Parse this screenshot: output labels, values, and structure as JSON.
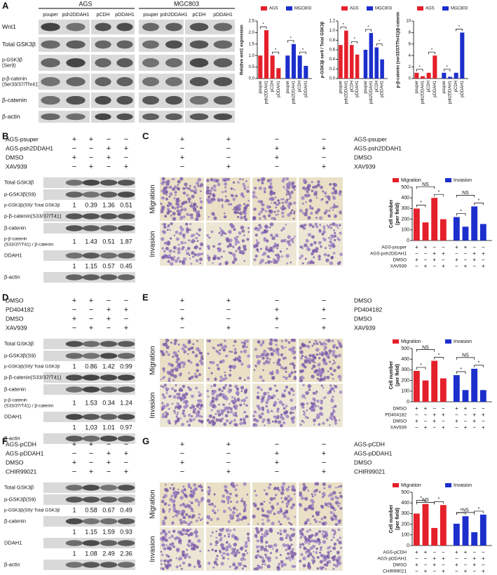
{
  "sig_mark": "*",
  "ns_mark": "NS",
  "panel_a": {
    "label": "A",
    "groups": [
      "AGS",
      "MGC803"
    ],
    "lanes": [
      "psuper",
      "psh2DDAH1",
      "pCDH",
      "pDDAH1"
    ],
    "blot_rows": [
      [
        "Wnt1"
      ],
      [
        "Total GSK3β"
      ],
      [
        "p-GSK3β",
        "(Ser9)"
      ],
      [
        "p-β-catenin",
        "(Ser33/37/Thr41)"
      ],
      [
        "β-catenin"
      ],
      [
        "β-actin"
      ]
    ],
    "charts": [
      {
        "type": "bar",
        "y_label": "Relative wnt1 expression",
        "categories": [
          "psuper",
          "psh2DDAH1",
          "pCDH",
          "pDDAH1"
        ],
        "series": [
          {
            "name": "AGS",
            "color": "#e4202a",
            "values": [
              1,
              2.1,
              1,
              0.45
            ]
          },
          {
            "name": "MGC803",
            "color": "#1c2fcc",
            "values": [
              1,
              1.5,
              1,
              0.55
            ]
          }
        ],
        "ylim": [
          0,
          2.5
        ],
        "yticks": [
          {
            "value": 0,
            "label": "0.0"
          },
          {
            "value": 0.5,
            "label": "0.5"
          },
          {
            "value": 1,
            "label": "1.0"
          },
          {
            "value": 1.5,
            "label": "1.5"
          },
          {
            "value": 2,
            "label": "2.0"
          },
          {
            "value": 2.5,
            "label": "2.5"
          }
        ]
      },
      {
        "type": "bar",
        "y_label": "p-GSK3β ser9 / Total GSK3β",
        "categories": [
          "psuper",
          "psh2DDAH1",
          "pCDH",
          "pDDAH1"
        ],
        "series": [
          {
            "name": "AGS",
            "color": "#e4202a",
            "values": [
              0.7,
              1.0,
              0.7,
              0.5
            ]
          },
          {
            "name": "MGC803",
            "color": "#1c2fcc",
            "values": [
              0.6,
              0.95,
              0.65,
              0.4
            ]
          }
        ],
        "ylim": [
          0,
          1.2
        ],
        "yticks": [
          {
            "value": 0,
            "label": "0.0"
          },
          {
            "value": 0.2,
            "label": "0.2"
          },
          {
            "value": 0.4,
            "label": "0.4"
          },
          {
            "value": 0.6,
            "label": "0.6"
          },
          {
            "value": 0.8,
            "label": "0.8"
          },
          {
            "value": 1,
            "label": "1.0"
          },
          {
            "value": 1.2,
            "label": "1.2"
          }
        ]
      },
      {
        "type": "bar",
        "y_label": "p-β-catenin (ser33/37/Thr41)/β-catenin",
        "categories": [
          "psuper",
          "psh2DDAH1",
          "pCDH",
          "pDDAH1"
        ],
        "series": [
          {
            "name": "AGS",
            "color": "#e4202a",
            "values": [
              1,
              0.4,
              1,
              4
            ]
          },
          {
            "name": "MGC803",
            "color": "#1c2fcc",
            "values": [
              1,
              0.3,
              1,
              8
            ]
          }
        ],
        "ylim": [
          0,
          10
        ],
        "yticks": [
          0,
          2,
          4,
          6,
          8,
          10
        ]
      }
    ]
  },
  "panel_b": {
    "label": "B",
    "conditions": [
      {
        "label": "AGS-psuper",
        "signs": [
          "+",
          "+",
          "−",
          "−"
        ]
      },
      {
        "label": "AGS-psh2DDAH1",
        "signs": [
          "−",
          "−",
          "+",
          "+"
        ]
      },
      {
        "label": "DMSO",
        "signs": [
          "+",
          "−",
          "+",
          "−"
        ]
      },
      {
        "label": "XAV939",
        "signs": [
          "−",
          "+",
          "−",
          "+"
        ]
      }
    ],
    "blots": [
      {
        "label": [
          "Total GSK3β"
        ]
      },
      {
        "label": [
          "p-GSK3β(S9)"
        ]
      },
      {
        "label": [
          "p-GSK3β(S9)/ Total GSK3β"
        ],
        "numbers": [
          1,
          0.39,
          1.36,
          0.51
        ]
      },
      {
        "label": [
          "p-β-catenin(S33/37/T41)"
        ]
      },
      {
        "label": [
          "β-catenin"
        ]
      },
      {
        "label": [
          "p-β-catenin",
          "(S33/37/T41) / β-catenin"
        ],
        "numbers": [
          1,
          1.43,
          0.51,
          1.87
        ]
      },
      {
        "label": [
          "DDAH1"
        ]
      },
      {
        "numbers": [
          1,
          1.15,
          0.57,
          0.45
        ]
      },
      {
        "label": [
          "β-actin"
        ]
      }
    ]
  },
  "panel_c": {
    "label": "C",
    "conditions": [
      {
        "label": "AGS-psuper",
        "signs": [
          "+",
          "+",
          "−",
          "−"
        ]
      },
      {
        "label": "AGS-psh2DDAH1",
        "signs": [
          "−",
          "−",
          "+",
          "+"
        ]
      },
      {
        "label": "DMSO",
        "signs": [
          "+",
          "−",
          "+",
          "−"
        ]
      },
      {
        "label": "XAV939",
        "signs": [
          "−",
          "+",
          "−",
          "+"
        ]
      }
    ],
    "rows": [
      "Migration",
      "Invasion"
    ],
    "chart": {
      "type": "bar",
      "y_label": [
        "Cell number",
        "(per field)"
      ],
      "series": [
        {
          "name": "Migration",
          "color": "#e4202a",
          "values": [
            300,
            170,
            400,
            200
          ]
        },
        {
          "name": "Invasion",
          "color": "#1c2fcc",
          "values": [
            220,
            130,
            320,
            155
          ]
        }
      ],
      "ylim": [
        0,
        500
      ],
      "yticks": [
        0,
        100,
        200,
        300,
        400,
        500
      ],
      "conditions": [
        {
          "label": "AGS-psuper",
          "signs": [
            "+",
            "+",
            "−",
            "−",
            "+",
            "+",
            "−",
            "−"
          ]
        },
        {
          "label": "AGS-psh2DDAH1",
          "signs": [
            "−",
            "−",
            "+",
            "+",
            "−",
            "−",
            "+",
            "+"
          ]
        },
        {
          "label": "DMSO",
          "signs": [
            "+",
            "−",
            "+",
            "−",
            "+",
            "−",
            "+",
            "−"
          ]
        },
        {
          "label": "XAV939",
          "signs": [
            "−",
            "+",
            "−",
            "+",
            "−",
            "+",
            "−",
            "+"
          ]
        }
      ]
    }
  },
  "panel_d": {
    "label": "D",
    "conditions": [
      {
        "label": "DMSO",
        "signs": [
          "+",
          "+",
          "−",
          "−"
        ]
      },
      {
        "label": "PD404182",
        "signs": [
          "−",
          "−",
          "+",
          "+"
        ]
      },
      {
        "label": "DMSO",
        "signs": [
          "+",
          "−",
          "+",
          "−"
        ]
      },
      {
        "label": "XAV939",
        "signs": [
          "−",
          "+",
          "−",
          "+"
        ]
      }
    ],
    "blots": [
      {
        "label": [
          "Total GSK3β"
        ]
      },
      {
        "label": [
          "p-GSK3β(S9)"
        ]
      },
      {
        "label": [
          "p-GSK3β(S9)/ Total GSK3β"
        ],
        "numbers": [
          1,
          0.86,
          1.42,
          0.99
        ]
      },
      {
        "label": [
          "p-β-catenin(S33/37/T41)"
        ]
      },
      {
        "label": [
          "β-catenin"
        ]
      },
      {
        "label": [
          "p-β-catenin",
          "(S33/37/T41) / β-catenin"
        ],
        "numbers": [
          1,
          1.53,
          0.34,
          1.24
        ]
      },
      {
        "label": [
          "DDAH1"
        ]
      },
      {
        "numbers": [
          1,
          "1,03",
          1.01,
          0.97
        ]
      },
      {
        "label": [
          "β-actin"
        ]
      }
    ]
  },
  "panel_e": {
    "label": "E",
    "conditions": [
      {
        "label": "DMSO",
        "signs": [
          "+",
          "+",
          "−",
          "−"
        ]
      },
      {
        "label": "PD404182",
        "signs": [
          "−",
          "−",
          "+",
          "+"
        ]
      },
      {
        "label": "DMSO",
        "signs": [
          "+",
          "−",
          "+",
          "−"
        ]
      },
      {
        "label": "XAV939",
        "signs": [
          "−",
          "+",
          "−",
          "+"
        ]
      }
    ],
    "rows": [
      "Migration",
      "Invasion"
    ],
    "chart": {
      "type": "bar",
      "y_label": [
        "Cell number",
        "(per field)"
      ],
      "series": [
        {
          "name": "Migration",
          "color": "#e4202a",
          "values": [
            290,
            200,
            385,
            220
          ]
        },
        {
          "name": "Invasion",
          "color": "#1c2fcc",
          "values": [
            250,
            110,
            310,
            110
          ]
        }
      ],
      "ylim": [
        0,
        500
      ],
      "yticks": [
        0,
        100,
        200,
        300,
        400,
        500
      ],
      "conditions": [
        {
          "label": "DMSO",
          "signs": [
            "+",
            "+",
            "−",
            "−",
            "+",
            "+",
            "−",
            "−"
          ]
        },
        {
          "label": "PD404182",
          "signs": [
            "−",
            "−",
            "+",
            "+",
            "−",
            "−",
            "+",
            "+"
          ]
        },
        {
          "label": "DMSO",
          "signs": [
            "+",
            "−",
            "+",
            "−",
            "+",
            "−",
            "+",
            "−"
          ]
        },
        {
          "label": "XAV939",
          "signs": [
            "−",
            "+",
            "−",
            "+",
            "−",
            "+",
            "−",
            "+"
          ]
        }
      ]
    }
  },
  "panel_f": {
    "label": "F",
    "conditions": [
      {
        "label": "AGS-pCDH",
        "signs": [
          "+",
          "+",
          "−",
          "−"
        ]
      },
      {
        "label": "AGS-pDDAH1",
        "signs": [
          "−",
          "−",
          "+",
          "+"
        ]
      },
      {
        "label": "DMSO",
        "signs": [
          "+",
          "−",
          "+",
          "−"
        ]
      },
      {
        "label": "CHIR99021",
        "signs": [
          "−",
          "+",
          "−",
          "+"
        ]
      }
    ],
    "blots": [
      {
        "label": [
          "Total GSK3β"
        ]
      },
      {
        "label": [
          "p-GSK3β(S9)"
        ]
      },
      {
        "label": [
          "p-GSK3β(S9)/ Total GSK3β"
        ],
        "numbers": [
          1,
          0.58,
          0.67,
          0.49
        ]
      },
      {
        "label": [
          "β-catenin"
        ]
      },
      {
        "numbers": [
          1,
          1.15,
          1.59,
          0.93
        ]
      },
      {
        "label": [
          "DDAH1"
        ]
      },
      {
        "numbers": [
          1,
          1.08,
          2.49,
          2.36
        ]
      },
      {
        "label": [
          "β-actin"
        ]
      }
    ]
  },
  "panel_g": {
    "label": "G",
    "conditions": [
      {
        "label": "AGS-pCDH",
        "signs": [
          "+",
          "+",
          "−",
          "−"
        ]
      },
      {
        "label": "AGS-pDDAH1",
        "signs": [
          "−",
          "−",
          "+",
          "+"
        ]
      },
      {
        "label": "DMSO",
        "signs": [
          "+",
          "−",
          "+",
          "−"
        ]
      },
      {
        "label": "CHIR99021",
        "signs": [
          "−",
          "+",
          "−",
          "+"
        ]
      }
    ],
    "rows": [
      "Migration",
      "Invasion"
    ],
    "chart": {
      "type": "bar",
      "y_label": [
        "Cell number",
        "(per field)"
      ],
      "series": [
        {
          "name": "Migration",
          "color": "#e4202a",
          "values": [
            300,
            390,
            165,
            380
          ]
        },
        {
          "name": "Invasion",
          "color": "#1c2fcc",
          "values": [
            205,
            275,
            125,
            290
          ]
        }
      ],
      "ylim": [
        0,
        500
      ],
      "yticks": [
        0,
        100,
        200,
        300,
        400,
        500
      ],
      "conditions": [
        {
          "label": "AGS-pCDH",
          "signs": [
            "+",
            "+",
            "−",
            "−",
            "+",
            "+",
            "−",
            "−"
          ]
        },
        {
          "label": "AGS-pDDAH1",
          "signs": [
            "−",
            "−",
            "+",
            "+",
            "−",
            "−",
            "+",
            "+"
          ]
        },
        {
          "label": "DMSO",
          "signs": [
            "+",
            "−",
            "+",
            "−",
            "+",
            "−",
            "+",
            "−"
          ]
        },
        {
          "label": "CHIR99021",
          "signs": [
            "−",
            "+",
            "−",
            "+",
            "−",
            "+",
            "−",
            "+"
          ]
        }
      ]
    }
  }
}
